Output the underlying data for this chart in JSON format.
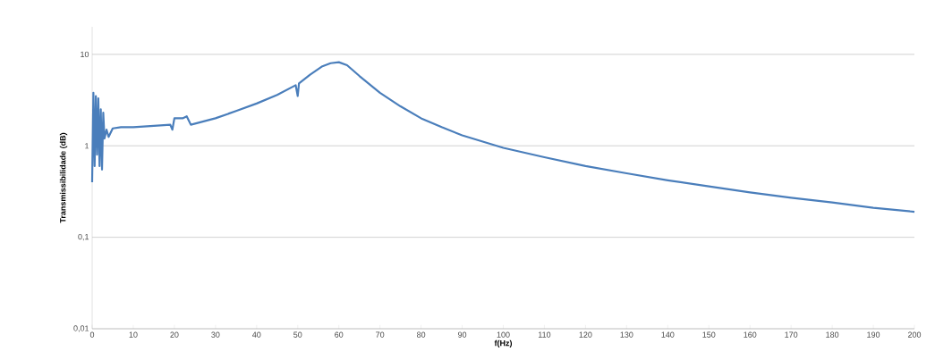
{
  "chart_data": {
    "type": "line",
    "xlabel": "f(Hz)",
    "ylabel": "Transmissibilidade (dB)",
    "log": "y",
    "grid": "y",
    "line_style": "solid",
    "marker": "none",
    "xlim": [
      0,
      200
    ],
    "xticks": [
      0,
      10,
      20,
      30,
      40,
      50,
      60,
      70,
      80,
      90,
      100,
      110,
      120,
      130,
      140,
      150,
      160,
      170,
      180,
      190,
      200
    ],
    "ylim": [
      0.01,
      20
    ],
    "yticks": [
      {
        "value": 0.01,
        "label": "0,01"
      },
      {
        "value": 0.1,
        "label": "0,1"
      },
      1,
      10
    ],
    "x": [
      0,
      0.3,
      0.6,
      0.9,
      1.2,
      1.5,
      1.8,
      2.1,
      2.4,
      2.7,
      3,
      3.5,
      4,
      5,
      7,
      10,
      15,
      19,
      19.5,
      20,
      22,
      23,
      24,
      30,
      35,
      40,
      45,
      49.5,
      50,
      50.3,
      53,
      56,
      58,
      60,
      62,
      65,
      70,
      75,
      80,
      85,
      90,
      100,
      110,
      120,
      130,
      140,
      150,
      160,
      170,
      180,
      190,
      200
    ],
    "series": [
      {
        "color": "#4a7ebb",
        "values": [
          0.4,
          3.8,
          0.6,
          3.5,
          0.8,
          3.3,
          0.6,
          2.5,
          0.55,
          2.3,
          1.2,
          1.5,
          1.25,
          1.55,
          1.6,
          1.6,
          1.65,
          1.7,
          1.5,
          2.0,
          2.0,
          2.1,
          1.7,
          2.0,
          2.4,
          2.9,
          3.6,
          4.6,
          3.5,
          4.8,
          6,
          7.4,
          8.0,
          8.2,
          7.6,
          5.8,
          3.8,
          2.7,
          2.0,
          1.6,
          1.3,
          0.95,
          0.75,
          0.6,
          0.5,
          0.42,
          0.36,
          0.31,
          0.27,
          0.24,
          0.21,
          0.19
        ]
      }
    ]
  }
}
